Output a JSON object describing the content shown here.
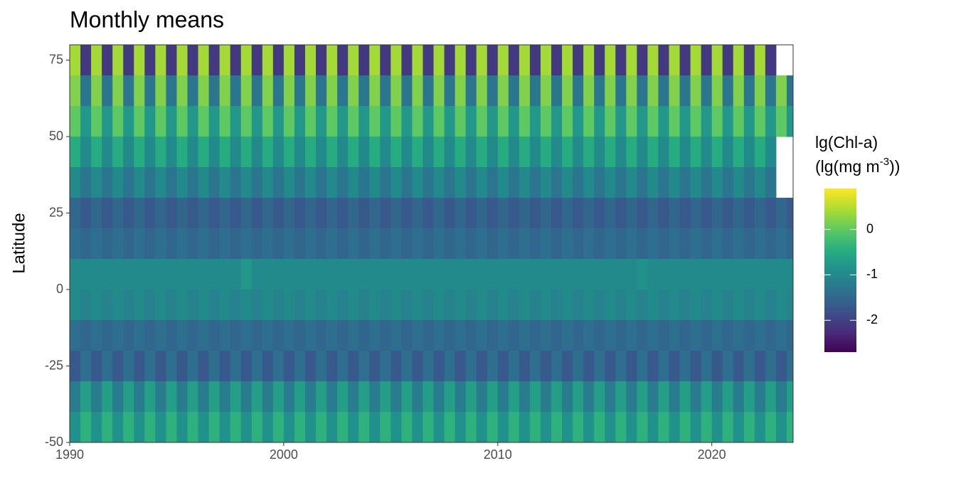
{
  "chart_data": {
    "type": "heatmap",
    "title": "Monthly means",
    "y_label": "Latitude",
    "colorbar_title": "lg(Chl-a)",
    "colorbar_unit": [
      "(lg(mg m",
      "-3",
      "))"
    ],
    "xlim": [
      1990,
      2023.8
    ],
    "xticks": [
      1990,
      2000,
      2010,
      2020
    ],
    "ylim": [
      -50,
      80
    ],
    "yticks": [
      -50,
      -25,
      0,
      25,
      50,
      75
    ],
    "zlim": [
      -2.7,
      0.9
    ],
    "zticks": [
      0,
      -1,
      -2
    ],
    "colormap": "viridis",
    "cell_width": 0.5,
    "cell_height": 10,
    "x": [
      1990.25,
      1990.75,
      1991.25,
      1991.75,
      1992.25,
      1992.75,
      1993.25,
      1993.75,
      1994.25,
      1994.75,
      1995.25,
      1995.75,
      1996.25,
      1996.75,
      1997.25,
      1997.75,
      1998.25,
      1998.75,
      1999.25,
      1999.75,
      2000.25,
      2000.75,
      2001.25,
      2001.75,
      2002.25,
      2002.75,
      2003.25,
      2003.75,
      2004.25,
      2004.75,
      2005.25,
      2005.75,
      2006.25,
      2006.75,
      2007.25,
      2007.75,
      2008.25,
      2008.75,
      2009.25,
      2009.75,
      2010.25,
      2010.75,
      2011.25,
      2011.75,
      2012.25,
      2012.75,
      2013.25,
      2013.75,
      2014.25,
      2014.75,
      2015.25,
      2015.75,
      2016.25,
      2016.75,
      2017.25,
      2017.75,
      2018.25,
      2018.75,
      2019.25,
      2019.75,
      2020.25,
      2020.75,
      2021.25,
      2021.75,
      2022.25,
      2022.75,
      2023.25,
      2023.75
    ],
    "y": [
      75,
      65,
      55,
      45,
      35,
      25,
      15,
      5,
      -5,
      -15,
      -25,
      -35,
      -45
    ],
    "z": [
      [
        0.4,
        -2.1,
        0.4,
        -2.1,
        0.4,
        -2.1,
        0.4,
        -2.1,
        0.4,
        -2.1,
        0.4,
        -2.1,
        0.4,
        -2.1,
        0.4,
        -2.1,
        0.4,
        -2.1,
        0.4,
        -2.1,
        0.4,
        -2.1,
        0.4,
        -2.1,
        0.4,
        -2.1,
        0.4,
        -2.1,
        0.4,
        -2.1,
        0.4,
        -2.1,
        0.4,
        -2.1,
        0.4,
        -2.1,
        0.4,
        -2.1,
        0.4,
        -2.1,
        0.4,
        -2.1,
        0.4,
        -2.1,
        0.4,
        -2.1,
        0.4,
        -2.1,
        0.4,
        -2.1,
        0.4,
        -2.1,
        0.4,
        -2.1,
        0.4,
        -2.1,
        0.4,
        -2.1,
        0.4,
        -2.1,
        0.4,
        -2.1,
        0.4,
        -2.1,
        0.4,
        -2.1
      ],
      [
        0.2,
        -1.3,
        0.2,
        -1.3,
        0.2,
        -1.3,
        0.2,
        -1.3,
        0.2,
        -1.3,
        0.2,
        -1.3,
        0.2,
        -1.3,
        0.2,
        -1.3,
        0.2,
        -1.3,
        0.2,
        -1.3,
        0.2,
        -1.3,
        0.2,
        -1.3,
        0.2,
        -1.3,
        0.2,
        -1.3,
        0.2,
        -1.3,
        0.2,
        -1.3,
        0.2,
        -1.3,
        0.2,
        -1.3,
        0.2,
        -1.3,
        0.2,
        -1.3,
        0.2,
        -1.3,
        0.2,
        -1.3,
        0.2,
        -1.3,
        0.2,
        -1.3,
        0.2,
        -1.3,
        0.2,
        -1.3,
        0.2,
        -1.3,
        0.2,
        -1.3,
        0.2,
        -1.3,
        0.2,
        -1.3,
        0.2,
        -1.3,
        0.2,
        -1.3,
        0.2,
        -1.3,
        0.2,
        -1.3
      ],
      [
        0.0,
        -0.8,
        0.0,
        -0.8,
        0.0,
        -0.8,
        0.0,
        -0.8,
        0.0,
        -0.8,
        0.0,
        -0.8,
        0.0,
        -0.8,
        0.0,
        -0.8,
        0.0,
        -0.8,
        0.0,
        -0.8,
        0.0,
        -0.8,
        0.0,
        -0.8,
        0.0,
        -0.8,
        0.0,
        -0.8,
        0.0,
        -0.8,
        0.0,
        -0.8,
        0.0,
        -0.8,
        0.0,
        -0.8,
        0.0,
        -0.8,
        0.0,
        -0.8,
        0.0,
        -0.8,
        0.0,
        -0.8,
        0.0,
        -0.8,
        0.0,
        -0.8,
        0.0,
        -0.8,
        0.0,
        -0.8,
        0.0,
        -0.8,
        0.0,
        -0.8,
        0.0,
        -0.8,
        0.0,
        -0.8,
        0.0,
        -0.8,
        0.0,
        -0.8,
        0.0,
        -0.8,
        0.0,
        -0.8
      ],
      [
        -0.5,
        -1.0,
        -0.5,
        -1.0,
        -0.5,
        -1.0,
        -0.5,
        -1.0,
        -0.5,
        -1.0,
        -0.5,
        -1.0,
        -0.5,
        -1.0,
        -0.5,
        -1.0,
        -0.5,
        -1.0,
        -0.5,
        -1.0,
        -0.5,
        -1.0,
        -0.5,
        -1.0,
        -0.5,
        -1.0,
        -0.5,
        -1.0,
        -0.5,
        -1.0,
        -0.5,
        -1.0,
        -0.5,
        -1.0,
        -0.5,
        -1.0,
        -0.5,
        -1.0,
        -0.5,
        -1.0,
        -0.5,
        -1.0,
        -0.5,
        -1.0,
        -0.5,
        -1.0,
        -0.5,
        -1.0,
        -0.5,
        -1.0,
        -0.5,
        -1.0,
        -0.5,
        -1.0,
        -0.5,
        -1.0,
        -0.5,
        -1.0,
        -0.5,
        -1.0,
        -0.5,
        -1.0,
        -0.5,
        -1.0,
        -0.5,
        -1.0
      ],
      [
        -1.0,
        -1.3,
        -1.0,
        -1.3,
        -1.0,
        -1.3,
        -1.0,
        -1.3,
        -1.0,
        -1.3,
        -1.0,
        -1.3,
        -1.0,
        -1.3,
        -1.0,
        -1.3,
        -1.0,
        -1.3,
        -1.0,
        -1.3,
        -1.0,
        -1.3,
        -1.0,
        -1.3,
        -1.0,
        -1.3,
        -1.0,
        -1.3,
        -1.0,
        -1.3,
        -1.0,
        -1.3,
        -1.0,
        -1.3,
        -1.0,
        -1.3,
        -1.0,
        -1.3,
        -1.0,
        -1.3,
        -1.0,
        -1.3,
        -1.0,
        -1.3,
        -1.0,
        -1.3,
        -1.0,
        -1.3,
        -1.0,
        -1.3,
        -1.0,
        -1.3,
        -1.0,
        -1.3,
        -1.0,
        -1.3,
        -1.0,
        -1.3,
        -1.0,
        -1.3,
        -1.0,
        -1.3,
        -1.0,
        -1.3,
        -1.0,
        -1.3
      ],
      [
        -1.5,
        -1.7,
        -1.5,
        -1.7,
        -1.5,
        -1.7,
        -1.5,
        -1.7,
        -1.5,
        -1.7,
        -1.5,
        -1.7,
        -1.5,
        -1.7,
        -1.5,
        -1.7,
        -1.5,
        -1.7,
        -1.5,
        -1.7,
        -1.5,
        -1.7,
        -1.5,
        -1.7,
        -1.5,
        -1.7,
        -1.5,
        -1.7,
        -1.5,
        -1.7,
        -1.5,
        -1.7,
        -1.5,
        -1.7,
        -1.5,
        -1.7,
        -1.5,
        -1.7,
        -1.5,
        -1.7,
        -1.5,
        -1.7,
        -1.5,
        -1.7,
        -1.5,
        -1.7,
        -1.5,
        -1.7,
        -1.5,
        -1.7,
        -1.5,
        -1.7,
        -1.5,
        -1.7,
        -1.5,
        -1.7,
        -1.5,
        -1.7,
        -1.5,
        -1.7,
        -1.5,
        -1.7,
        -1.5,
        -1.7,
        -1.5,
        -1.7,
        -1.5,
        -1.7
      ],
      [
        -1.4,
        -1.5,
        -1.4,
        -1.5,
        -1.4,
        -1.5,
        -1.4,
        -1.5,
        -1.4,
        -1.5,
        -1.4,
        -1.5,
        -1.4,
        -1.5,
        -1.4,
        -1.5,
        -1.4,
        -1.5,
        -1.4,
        -1.5,
        -1.4,
        -1.5,
        -1.4,
        -1.5,
        -1.4,
        -1.5,
        -1.4,
        -1.5,
        -1.4,
        -1.5,
        -1.4,
        -1.5,
        -1.4,
        -1.5,
        -1.4,
        -1.5,
        -1.4,
        -1.5,
        -1.4,
        -1.5,
        -1.4,
        -1.5,
        -1.4,
        -1.5,
        -1.4,
        -1.5,
        -1.4,
        -1.5,
        -1.4,
        -1.5,
        -1.4,
        -1.5,
        -1.4,
        -1.5,
        -1.4,
        -1.5,
        -1.4,
        -1.5,
        -1.4,
        -1.5,
        -1.4,
        -1.5,
        -1.4,
        -1.5,
        -1.4,
        -1.5,
        -1.4,
        -1.5
      ],
      [
        -1.0,
        -1.0,
        -1.0,
        -1.0,
        -1.0,
        -1.0,
        -1.0,
        -1.0,
        -1.0,
        -1.0,
        -1.0,
        -1.0,
        -1.0,
        -1.0,
        -1.0,
        -1.0,
        -0.8,
        -1.0,
        -1.0,
        -1.0,
        -1.0,
        -1.0,
        -1.0,
        -1.0,
        -1.0,
        -1.0,
        -1.0,
        -1.0,
        -1.0,
        -1.0,
        -1.0,
        -1.0,
        -1.0,
        -1.0,
        -1.0,
        -1.0,
        -1.0,
        -1.0,
        -1.0,
        -1.0,
        -1.0,
        -1.0,
        -1.0,
        -1.0,
        -1.0,
        -1.0,
        -1.0,
        -1.0,
        -1.0,
        -1.0,
        -1.0,
        -1.0,
        -1.0,
        -0.9,
        -1.0,
        -1.0,
        -1.0,
        -1.0,
        -1.0,
        -1.0,
        -1.0,
        -1.0,
        -1.0,
        -1.0,
        -1.0,
        -1.0,
        -1.0,
        -1.0
      ],
      [
        -1.0,
        -1.1,
        -1.0,
        -1.1,
        -1.0,
        -1.1,
        -1.0,
        -1.1,
        -1.0,
        -1.1,
        -1.0,
        -1.1,
        -1.0,
        -1.1,
        -1.0,
        -1.1,
        -1.0,
        -1.1,
        -1.0,
        -1.1,
        -1.0,
        -1.1,
        -1.0,
        -1.1,
        -1.0,
        -1.1,
        -1.0,
        -1.1,
        -1.0,
        -1.1,
        -1.0,
        -1.1,
        -1.0,
        -1.1,
        -1.0,
        -1.1,
        -1.0,
        -1.1,
        -1.0,
        -1.1,
        -1.0,
        -1.1,
        -1.0,
        -1.1,
        -1.0,
        -1.1,
        -1.0,
        -1.1,
        -1.0,
        -1.1,
        -1.0,
        -1.1,
        -1.0,
        -1.1,
        -1.0,
        -1.1,
        -1.0,
        -1.1,
        -1.0,
        -1.1,
        -1.0,
        -1.1,
        -1.0,
        -1.1,
        -1.0,
        -1.1,
        -1.0,
        -1.1
      ],
      [
        -1.4,
        -1.5,
        -1.4,
        -1.5,
        -1.4,
        -1.5,
        -1.4,
        -1.5,
        -1.4,
        -1.5,
        -1.4,
        -1.5,
        -1.4,
        -1.5,
        -1.4,
        -1.5,
        -1.4,
        -1.5,
        -1.4,
        -1.5,
        -1.4,
        -1.5,
        -1.4,
        -1.5,
        -1.4,
        -1.5,
        -1.4,
        -1.5,
        -1.4,
        -1.5,
        -1.4,
        -1.5,
        -1.4,
        -1.5,
        -1.4,
        -1.5,
        -1.4,
        -1.5,
        -1.4,
        -1.5,
        -1.4,
        -1.5,
        -1.4,
        -1.5,
        -1.4,
        -1.5,
        -1.4,
        -1.5,
        -1.4,
        -1.5,
        -1.4,
        -1.5,
        -1.4,
        -1.5,
        -1.4,
        -1.5,
        -1.4,
        -1.5,
        -1.4,
        -1.5,
        -1.4,
        -1.5,
        -1.4,
        -1.5,
        -1.4,
        -1.5,
        -1.4,
        -1.5
      ],
      [
        -1.7,
        -1.4,
        -1.7,
        -1.4,
        -1.7,
        -1.4,
        -1.7,
        -1.4,
        -1.7,
        -1.4,
        -1.7,
        -1.4,
        -1.7,
        -1.4,
        -1.7,
        -1.4,
        -1.7,
        -1.4,
        -1.7,
        -1.4,
        -1.7,
        -1.4,
        -1.7,
        -1.4,
        -1.7,
        -1.4,
        -1.7,
        -1.4,
        -1.7,
        -1.4,
        -1.7,
        -1.4,
        -1.7,
        -1.4,
        -1.7,
        -1.4,
        -1.7,
        -1.4,
        -1.7,
        -1.4,
        -1.7,
        -1.4,
        -1.7,
        -1.4,
        -1.7,
        -1.4,
        -1.7,
        -1.4,
        -1.7,
        -1.4,
        -1.7,
        -1.4,
        -1.7,
        -1.4,
        -1.7,
        -1.4,
        -1.7,
        -1.4,
        -1.7,
        -1.4,
        -1.7,
        -1.4,
        -1.7,
        -1.4,
        -1.7,
        -1.4,
        -1.7,
        -1.4
      ],
      [
        -1.2,
        -0.7,
        -1.2,
        -0.7,
        -1.2,
        -0.7,
        -1.2,
        -0.7,
        -1.2,
        -0.7,
        -1.2,
        -0.7,
        -1.2,
        -0.7,
        -1.2,
        -0.7,
        -1.2,
        -0.7,
        -1.2,
        -0.7,
        -1.2,
        -0.7,
        -1.2,
        -0.7,
        -1.2,
        -0.7,
        -1.2,
        -0.7,
        -1.2,
        -0.7,
        -1.2,
        -0.7,
        -1.2,
        -0.7,
        -1.2,
        -0.7,
        -1.2,
        -0.7,
        -1.2,
        -0.7,
        -1.2,
        -0.7,
        -1.2,
        -0.7,
        -1.2,
        -0.7,
        -1.2,
        -0.7,
        -1.2,
        -0.7,
        -1.2,
        -0.7,
        -1.2,
        -0.7,
        -1.2,
        -0.7,
        -1.2,
        -0.7,
        -1.2,
        -0.7,
        -1.2,
        -0.7,
        -1.2,
        -0.7,
        -1.2,
        -0.7,
        -1.2,
        -0.7
      ],
      [
        -0.9,
        -0.4,
        -0.9,
        -0.4,
        -0.9,
        -0.4,
        -0.9,
        -0.4,
        -0.9,
        -0.4,
        -0.9,
        -0.4,
        -0.9,
        -0.4,
        -0.9,
        -0.4,
        -0.9,
        -0.4,
        -0.9,
        -0.4,
        -0.9,
        -0.4,
        -0.9,
        -0.4,
        -0.9,
        -0.4,
        -0.9,
        -0.4,
        -0.9,
        -0.4,
        -0.9,
        -0.4,
        -0.9,
        -0.4,
        -0.9,
        -0.4,
        -0.9,
        -0.4,
        -0.9,
        -0.4,
        -0.9,
        -0.4,
        -0.9,
        -0.4,
        -0.9,
        -0.4,
        -0.9,
        -0.4,
        -0.9,
        -0.4,
        -0.9,
        -0.4,
        -0.9,
        -0.4,
        -0.9,
        -0.4,
        -0.9,
        -0.4,
        -0.9,
        -0.4,
        -0.9,
        -0.4,
        -0.9,
        -0.4,
        -0.9,
        -0.4,
        -0.9,
        -0.4
      ]
    ]
  }
}
